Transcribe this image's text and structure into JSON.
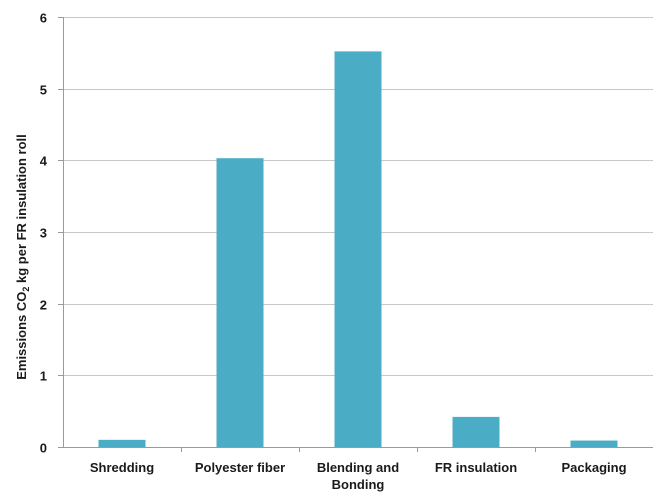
{
  "chart_data": {
    "type": "bar",
    "categories": [
      [
        "Shredding"
      ],
      [
        "Polyester fiber"
      ],
      [
        "Blending and",
        "Bonding"
      ],
      [
        "FR insulation"
      ],
      [
        "Packaging"
      ]
    ],
    "values": [
      0.1,
      4.03,
      5.52,
      0.42,
      0.09
    ],
    "ylabel_parts": [
      "Emissions CO",
      "2",
      " kg per FR insulation roll"
    ],
    "xlabel": "",
    "title": "",
    "ylim": [
      0,
      6
    ],
    "yticks": [
      0,
      1,
      2,
      3,
      4,
      5,
      6
    ],
    "grid": true,
    "bar_color": "#4bacc6"
  }
}
